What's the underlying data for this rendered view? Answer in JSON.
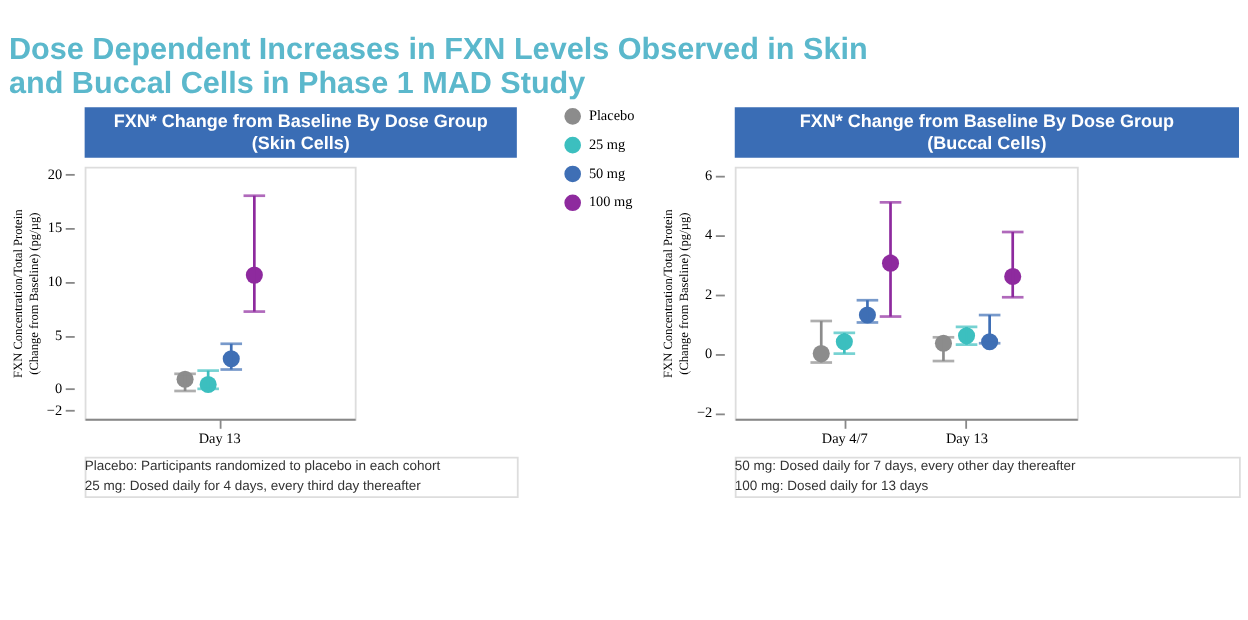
{
  "chart_data": [
    {
      "type": "scatter",
      "title": "Dose Dependent Increases in FXN Levels Observed in Skin\nand Buccal Cells in Phase 1 MAD Study",
      "subtitle": "FXN* Change from Baseline By Dose Group\n(Skin Cells)",
      "ylabel": "FXN Concentration/Total Protein\n(Change from Baseline) (pg/µg)",
      "categories": [
        "Day 13"
      ],
      "ylim": [
        -2.8,
        20.7
      ],
      "yticks": [
        -2,
        0,
        5,
        10,
        15,
        20
      ],
      "grid": false,
      "legend": "right",
      "marker": "circle",
      "series": [
        {
          "name": "Placebo",
          "color": "#8c8c8c",
          "values": [
            0.9
          ],
          "errors": [
            [
              -0.2,
              1.4
            ]
          ]
        },
        {
          "name": "25 mg",
          "color": "#3cbfbf",
          "values": [
            0.4
          ],
          "errors": [
            [
              0.0,
              1.7
            ]
          ]
        },
        {
          "name": "50 mg",
          "color": "#3f6fb5",
          "values": [
            2.8
          ],
          "errors": [
            [
              1.8,
              4.2
            ]
          ]
        },
        {
          "name": "100 mg",
          "color": "#8e2a9e",
          "values": [
            10.6
          ],
          "errors": [
            [
              7.2,
              18.0
            ]
          ]
        }
      ],
      "annotations": [
        "Placebo: Participants randomized to placebo in each cohort",
        "25 mg: Dosed daily for 4 days, every third day thereafter"
      ]
    },
    {
      "type": "scatter",
      "subtitle": "FXN* Change from Baseline By Dose Group\n(Buccal Cells)",
      "ylabel": "FXN Concentration/Total Protein\n(Change from Baseline) (pg/µg)",
      "categories": [
        "Day 4/7",
        "Day 13"
      ],
      "ylim": [
        -2.2,
        6.3
      ],
      "yticks": [
        -2,
        0,
        2,
        4,
        6
      ],
      "grid": false,
      "legend": false,
      "marker": "circle",
      "series": [
        {
          "name": "Placebo",
          "color": "#8c8c8c",
          "values": [
            0.0,
            0.35
          ],
          "errors": [
            [
              -0.3,
              1.1
            ],
            [
              -0.25,
              0.55
            ]
          ]
        },
        {
          "name": "25 mg",
          "color": "#3cbfbf",
          "values": [
            0.4,
            0.6
          ],
          "errors": [
            [
              0.0,
              0.7
            ],
            [
              0.3,
              0.9
            ]
          ]
        },
        {
          "name": "50 mg",
          "color": "#3f6fb5",
          "values": [
            1.3,
            0.4
          ],
          "errors": [
            [
              1.05,
              1.8
            ],
            [
              0.35,
              1.3
            ]
          ]
        },
        {
          "name": "100 mg",
          "color": "#8e2a9e",
          "values": [
            3.05,
            2.6
          ],
          "errors": [
            [
              1.25,
              5.1
            ],
            [
              1.9,
              4.1
            ]
          ]
        }
      ],
      "annotations": [
        "50 mg: Dosed daily for 7 days, every other day thereafter",
        "100 mg: Dosed daily for 13 days"
      ]
    }
  ]
}
